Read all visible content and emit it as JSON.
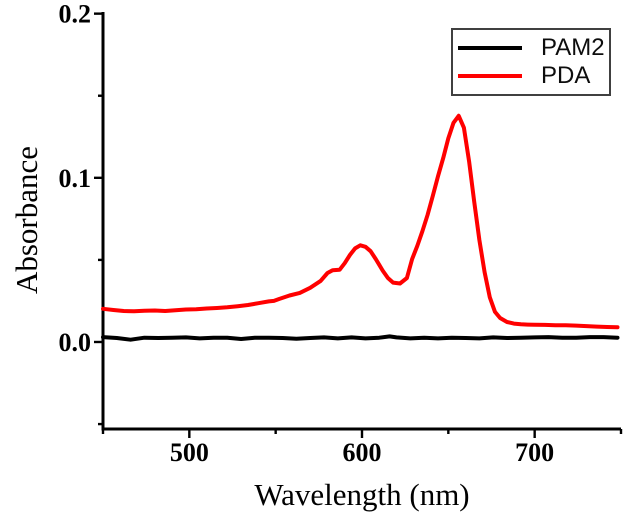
{
  "figure": {
    "background": "#ffffff",
    "axis_color": "#000000",
    "text_color": "#000000",
    "legend_border_color": "#404040"
  },
  "chart_data": {
    "type": "line",
    "title": "",
    "xlabel": "Wavelength (nm)",
    "ylabel": "Absorbance",
    "xlim": [
      450,
      750
    ],
    "ylim": [
      -0.053,
      0.201
    ],
    "grid": false,
    "legend_position": "top-right",
    "x_major_ticks": [
      500,
      600,
      700
    ],
    "x_minor_ticks": [
      450,
      550,
      650,
      750
    ],
    "x_tick_labels": [
      "500",
      "600",
      "700"
    ],
    "y_major_ticks": [
      0.0,
      0.1,
      0.2
    ],
    "y_minor_ticks": [
      -0.05,
      0.05,
      0.15
    ],
    "y_tick_labels": [
      "0.0",
      "0.1",
      "0.2"
    ],
    "series": [
      {
        "name": "PAM2",
        "color": "#000000",
        "x": [
          450,
          458,
          466,
          474,
          482,
          490,
          498,
          506,
          514,
          522,
          530,
          538,
          546,
          554,
          562,
          570,
          578,
          586,
          594,
          602,
          610,
          616,
          620,
          628,
          636,
          644,
          652,
          660,
          668,
          676,
          684,
          692,
          700,
          708,
          716,
          724,
          732,
          740,
          748
        ],
        "y": [
          0.003,
          0.0024,
          0.0014,
          0.0026,
          0.0024,
          0.0026,
          0.0028,
          0.0022,
          0.0026,
          0.0026,
          0.0018,
          0.0026,
          0.0026,
          0.0024,
          0.002,
          0.0024,
          0.0028,
          0.0022,
          0.0028,
          0.0022,
          0.0026,
          0.0034,
          0.0028,
          0.0022,
          0.0026,
          0.0022,
          0.0026,
          0.0024,
          0.0022,
          0.0028,
          0.0024,
          0.0026,
          0.0028,
          0.003,
          0.0026,
          0.0026,
          0.003,
          0.003,
          0.0026
        ]
      },
      {
        "name": "PDA",
        "color": "#ff0000",
        "x": [
          450,
          456,
          462,
          468,
          474,
          480,
          486,
          492,
          498,
          504,
          510,
          516,
          522,
          528,
          534,
          540,
          546,
          549,
          552,
          558,
          564,
          570,
          576,
          580,
          583,
          587,
          590,
          593,
          596,
          599,
          602,
          605,
          608,
          612,
          615,
          618,
          622,
          626,
          629,
          632,
          635,
          638,
          641,
          644,
          647,
          650,
          653,
          656,
          659,
          662,
          665,
          668,
          671,
          674,
          677,
          680,
          684,
          688,
          692,
          696,
          700,
          706,
          712,
          718,
          724,
          730,
          736,
          742,
          748
        ],
        "y": [
          0.0202,
          0.0195,
          0.0189,
          0.0187,
          0.019,
          0.0192,
          0.0189,
          0.0193,
          0.0198,
          0.02,
          0.0204,
          0.0207,
          0.0211,
          0.0218,
          0.0225,
          0.0236,
          0.0247,
          0.025,
          0.0262,
          0.0283,
          0.0299,
          0.033,
          0.0372,
          0.042,
          0.0437,
          0.044,
          0.048,
          0.053,
          0.057,
          0.0589,
          0.058,
          0.0553,
          0.0505,
          0.0435,
          0.039,
          0.0362,
          0.0356,
          0.039,
          0.0505,
          0.0585,
          0.0675,
          0.0775,
          0.089,
          0.101,
          0.112,
          0.124,
          0.1335,
          0.1378,
          0.1305,
          0.11,
          0.0855,
          0.062,
          0.0425,
          0.0272,
          0.0183,
          0.0146,
          0.0122,
          0.0112,
          0.0108,
          0.0106,
          0.0105,
          0.0104,
          0.0102,
          0.0102,
          0.01,
          0.0097,
          0.0094,
          0.0091,
          0.009
        ]
      }
    ]
  }
}
